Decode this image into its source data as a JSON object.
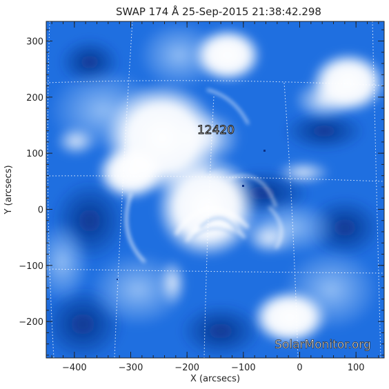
{
  "title": "SWAP 174 Å 25-Sep-2015 21:38:42.298",
  "x_axis": {
    "label": "X (arcsecs)",
    "range": [
      -450,
      150
    ],
    "ticks": [
      {
        "value": -400,
        "label": "−400"
      },
      {
        "value": -300,
        "label": "−300"
      },
      {
        "value": -200,
        "label": "−200"
      },
      {
        "value": -100,
        "label": "−100"
      },
      {
        "value": 0,
        "label": "0"
      },
      {
        "value": 100,
        "label": "100"
      }
    ],
    "minor_step": 20
  },
  "y_axis": {
    "label": "Y (arcsecs)",
    "range": [
      -265,
      335
    ],
    "ticks": [
      {
        "value": 300,
        "label": "300"
      },
      {
        "value": 200,
        "label": "200"
      },
      {
        "value": 100,
        "label": "100"
      },
      {
        "value": 0,
        "label": "0"
      },
      {
        "value": -100,
        "label": "−100"
      },
      {
        "value": -200,
        "label": "−200"
      }
    ],
    "minor_step": 20
  },
  "annotations": {
    "region_label": "12420",
    "watermark": "SolarMonitor.org"
  },
  "colors": {
    "dark_blue": "#0a3a9a",
    "mid_blue": "#1f6fe0",
    "light_blue": "#7fb2f2",
    "white": "#ffffff",
    "grid": "#ffffff"
  }
}
